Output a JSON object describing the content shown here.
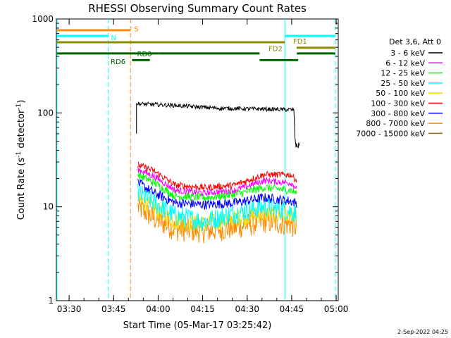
{
  "chart_data": {
    "type": "line",
    "title": "RHESSI Observing Summary Count Rates",
    "xlabel": "Start Time (05-Mar-17 03:25:42)",
    "ylabel_main": "Count Rate (s",
    "ylabel_sup1": "-1",
    "ylabel_mid": " detector",
    "ylabel_sup2": "-1",
    "ylabel_end": ")",
    "y_scale": "log",
    "ylim": [
      1,
      1000
    ],
    "xlim_minutes": [
      0,
      95
    ],
    "grid": false,
    "x_ticks": [
      {
        "label": "03:30",
        "t": 4.3
      },
      {
        "label": "03:45",
        "t": 19.3
      },
      {
        "label": "04:00",
        "t": 34.3
      },
      {
        "label": "04:15",
        "t": 49.3
      },
      {
        "label": "04:30",
        "t": 64.3
      },
      {
        "label": "04:45",
        "t": 79.3
      },
      {
        "label": "05:00",
        "t": 94.3
      }
    ],
    "y_ticks": [
      {
        "label": "1",
        "v": 1
      },
      {
        "label": "10",
        "v": 10
      },
      {
        "label": "100",
        "v": 100
      },
      {
        "label": "1000",
        "v": 1000
      }
    ],
    "legend_title": "Det 3,6, Att 0",
    "legend_position": "right",
    "series": [
      {
        "name": "3 - 6 keV",
        "color": "#000000"
      },
      {
        "name": "6 - 12 keV",
        "color": "#ff00ff"
      },
      {
        "name": "12 - 25 keV",
        "color": "#00ff00"
      },
      {
        "name": "25 - 50 keV",
        "color": "#00ffff"
      },
      {
        "name": "50 - 100 keV",
        "color": "#ffd700"
      },
      {
        "name": "100 - 300 keV",
        "color": "#ff0000"
      },
      {
        "name": "300 - 800 keV",
        "color": "#0000ff"
      },
      {
        "name": "800 - 7000 keV",
        "color": "#ff8c00"
      },
      {
        "name": "7000 - 15000 keV",
        "color": "#8b6914"
      }
    ],
    "profiles": {
      "black_3_6": {
        "t_start": 27.0,
        "t_end": 80.2,
        "start_value": 60,
        "plateau": [
          [
            27.5,
            125
          ],
          [
            40,
            120
          ],
          [
            55,
            112
          ],
          [
            70,
            110
          ],
          [
            79,
            108
          ]
        ],
        "drop_to": 45,
        "drop_end": 82
      },
      "red_100_300": [
        [
          27.5,
          28
        ],
        [
          33,
          24
        ],
        [
          40,
          17
        ],
        [
          50,
          16
        ],
        [
          60,
          17
        ],
        [
          70,
          22
        ],
        [
          79,
          22
        ],
        [
          81,
          19
        ]
      ],
      "magenta_6_12": [
        [
          27.5,
          25
        ],
        [
          33,
          21
        ],
        [
          40,
          15
        ],
        [
          50,
          14
        ],
        [
          60,
          15
        ],
        [
          70,
          19
        ],
        [
          79,
          18
        ],
        [
          81,
          16
        ]
      ],
      "green_12_25": [
        [
          27.5,
          22
        ],
        [
          33,
          18
        ],
        [
          40,
          13
        ],
        [
          50,
          12.5
        ],
        [
          60,
          13.5
        ],
        [
          70,
          16
        ],
        [
          79,
          15
        ],
        [
          81,
          14
        ]
      ],
      "blue_300_800": [
        [
          27.5,
          18
        ],
        [
          33,
          14
        ],
        [
          40,
          11
        ],
        [
          50,
          10.5
        ],
        [
          60,
          11
        ],
        [
          70,
          12.5
        ],
        [
          79,
          11.5
        ],
        [
          81,
          11
        ]
      ],
      "cyan_25_50": [
        [
          27.5,
          14
        ],
        [
          33,
          11
        ],
        [
          40,
          8
        ],
        [
          50,
          7
        ],
        [
          60,
          8.5
        ],
        [
          70,
          10
        ],
        [
          79,
          9
        ],
        [
          81,
          8.5
        ]
      ],
      "yellow_50_100": [
        [
          27.5,
          12
        ],
        [
          33,
          9.5
        ],
        [
          40,
          7
        ],
        [
          50,
          6.5
        ],
        [
          60,
          7.5
        ],
        [
          70,
          8.5
        ],
        [
          79,
          8
        ],
        [
          81,
          7.5
        ]
      ],
      "orange_800_7000": [
        [
          27.5,
          10
        ],
        [
          33,
          7.5
        ],
        [
          40,
          5.8
        ],
        [
          50,
          5.5
        ],
        [
          60,
          6
        ],
        [
          70,
          7
        ],
        [
          79,
          6.5
        ],
        [
          81,
          6
        ]
      ]
    },
    "v_lines": [
      {
        "t": 0.2,
        "color": "#00ffff",
        "style": "solid"
      },
      {
        "t": 17.5,
        "color": "#00ffff",
        "style": "dashed"
      },
      {
        "t": 25.0,
        "color": "#ff8c00",
        "style": "dashed"
      },
      {
        "t": 77.0,
        "color": "#00ffff",
        "style": "solid"
      },
      {
        "t": 94.0,
        "color": "#00ffff",
        "style": "dashed"
      }
    ],
    "flag_bars": [
      {
        "label": "S",
        "color": "#ff8c00",
        "segments": [
          [
            0.2,
            25.0
          ]
        ],
        "v": 760,
        "label_t": 26.2,
        "label_v": 790
      },
      {
        "label": "N",
        "color": "#00ffff",
        "segments": [
          [
            0.2,
            17.5
          ],
          [
            77.0,
            94.0
          ]
        ],
        "v": 660,
        "label_t": 18.4,
        "label_v": 640
      },
      {
        "label": "FD1",
        "color": "#8b8b00",
        "segments": [
          [
            0.2,
            77.0
          ]
        ],
        "v": 565,
        "label_t": 79.8,
        "label_v": 585
      },
      {
        "label": "FD2",
        "color": "#8b8b00",
        "segments": [
          [
            81.0,
            94.0
          ]
        ],
        "v": 495,
        "label_t": 71.5,
        "label_v": 490
      },
      {
        "label": "RD0",
        "color": "#006400",
        "segments": [
          [
            0.2,
            34.5
          ],
          [
            34.5,
            68.5
          ],
          [
            81.0,
            94.0
          ]
        ],
        "v": 430,
        "label_t": 27.2,
        "label_v": 430
      },
      {
        "label": "RD6",
        "color": "#006400",
        "segments": [
          [
            25.5,
            31.5
          ],
          [
            68.5,
            81.5
          ]
        ],
        "v": 365,
        "label_t": 18.3,
        "label_v": 355
      }
    ],
    "footer_date": "2-Sep-2022 04:25"
  }
}
